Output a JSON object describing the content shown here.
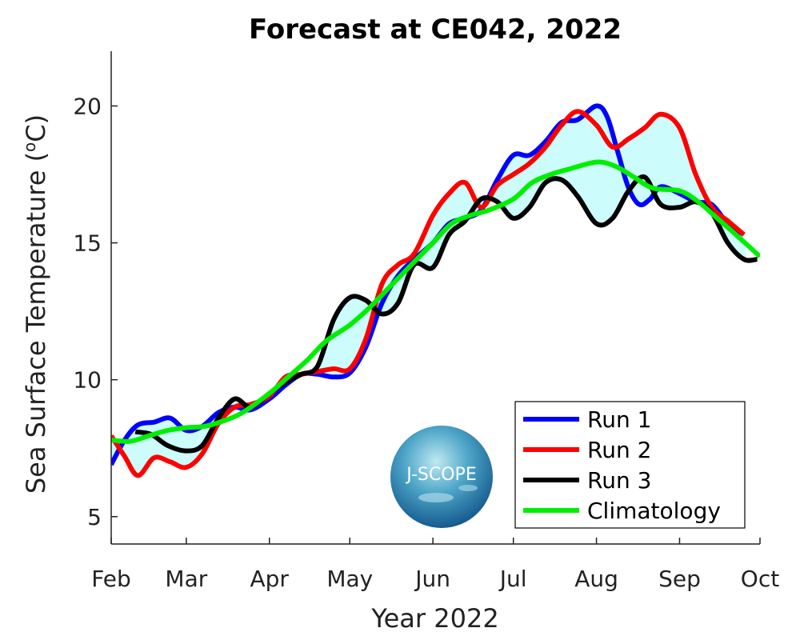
{
  "chart_data": {
    "type": "line",
    "title": "Forecast at CE042, 2022",
    "xlabel": "Year 2022",
    "ylabel": "Sea Surface Temperature (°C)",
    "ylabel_parts": {
      "main": "Sea Surface Temperature (",
      "sup": "o",
      "unit": "C)"
    },
    "x_type": "date",
    "x_ticks": [
      {
        "date": "2022-02-01",
        "label": "Feb"
      },
      {
        "date": "2022-03-01",
        "label": "Mar"
      },
      {
        "date": "2022-04-01",
        "label": "Apr"
      },
      {
        "date": "2022-05-01",
        "label": "May"
      },
      {
        "date": "2022-06-01",
        "label": "Jun"
      },
      {
        "date": "2022-07-01",
        "label": "Jul"
      },
      {
        "date": "2022-08-01",
        "label": "Aug"
      },
      {
        "date": "2022-09-01",
        "label": "Sep"
      },
      {
        "date": "2022-10-01",
        "label": "Oct"
      }
    ],
    "xlim": [
      "2022-02-01",
      "2022-10-01"
    ],
    "ylim": [
      4,
      22
    ],
    "y_ticks": [
      5,
      10,
      15,
      20
    ],
    "grid": false,
    "legend_position": "bottom-right",
    "envelope": {
      "fill": "#ccfcfc",
      "series": [
        "Run 1",
        "Run 2",
        "Run 3"
      ]
    },
    "series": [
      {
        "name": "Run 1",
        "color": "#0000ff",
        "points": [
          [
            "2022-02-01",
            6.9
          ],
          [
            "2022-02-06",
            7.8
          ],
          [
            "2022-02-11",
            8.35
          ],
          [
            "2022-02-17",
            8.45
          ],
          [
            "2022-02-23",
            8.6
          ],
          [
            "2022-03-01",
            8.15
          ],
          [
            "2022-03-07",
            8.3
          ],
          [
            "2022-03-13",
            8.8
          ],
          [
            "2022-03-19",
            9.0
          ],
          [
            "2022-03-25",
            8.9
          ],
          [
            "2022-04-01",
            9.3
          ],
          [
            "2022-04-07",
            9.8
          ],
          [
            "2022-04-13",
            10.2
          ],
          [
            "2022-04-19",
            10.2
          ],
          [
            "2022-04-25",
            10.1
          ],
          [
            "2022-05-01",
            10.25
          ],
          [
            "2022-05-07",
            11.2
          ],
          [
            "2022-05-13",
            12.8
          ],
          [
            "2022-05-19",
            13.8
          ],
          [
            "2022-05-25",
            14.4
          ],
          [
            "2022-06-01",
            15.0
          ],
          [
            "2022-06-07",
            15.7
          ],
          [
            "2022-06-13",
            15.9
          ],
          [
            "2022-06-19",
            16.2
          ],
          [
            "2022-06-25",
            17.3
          ],
          [
            "2022-07-01",
            18.2
          ],
          [
            "2022-07-07",
            18.2
          ],
          [
            "2022-07-13",
            18.7
          ],
          [
            "2022-07-19",
            19.4
          ],
          [
            "2022-07-25",
            19.5
          ],
          [
            "2022-08-01",
            20.0
          ],
          [
            "2022-08-05",
            19.6
          ],
          [
            "2022-08-09",
            18.3
          ],
          [
            "2022-08-13",
            17.0
          ],
          [
            "2022-08-17",
            16.4
          ],
          [
            "2022-08-21",
            16.6
          ],
          [
            "2022-08-25",
            17.05
          ],
          [
            "2022-09-01",
            16.8
          ],
          [
            "2022-09-07",
            16.5
          ],
          [
            "2022-09-13",
            16.4
          ],
          [
            "2022-09-19",
            15.7
          ],
          [
            "2022-09-25",
            15.3
          ]
        ]
      },
      {
        "name": "Run 2",
        "color": "#ff0000",
        "points": [
          [
            "2022-02-01",
            7.95
          ],
          [
            "2022-02-06",
            7.2
          ],
          [
            "2022-02-11",
            6.5
          ],
          [
            "2022-02-17",
            7.15
          ],
          [
            "2022-02-23",
            7.0
          ],
          [
            "2022-03-01",
            6.8
          ],
          [
            "2022-03-07",
            7.3
          ],
          [
            "2022-03-13",
            8.4
          ],
          [
            "2022-03-19",
            9.0
          ],
          [
            "2022-03-25",
            9.1
          ],
          [
            "2022-04-01",
            9.4
          ],
          [
            "2022-04-07",
            10.1
          ],
          [
            "2022-04-13",
            10.2
          ],
          [
            "2022-04-19",
            10.3
          ],
          [
            "2022-04-25",
            10.4
          ],
          [
            "2022-05-01",
            10.4
          ],
          [
            "2022-05-07",
            11.5
          ],
          [
            "2022-05-13",
            13.5
          ],
          [
            "2022-05-19",
            14.2
          ],
          [
            "2022-05-25",
            14.6
          ],
          [
            "2022-06-01",
            16.0
          ],
          [
            "2022-06-07",
            16.8
          ],
          [
            "2022-06-13",
            17.2
          ],
          [
            "2022-06-19",
            16.3
          ],
          [
            "2022-06-25",
            17.1
          ],
          [
            "2022-07-01",
            17.5
          ],
          [
            "2022-07-07",
            17.9
          ],
          [
            "2022-07-13",
            18.5
          ],
          [
            "2022-07-19",
            19.3
          ],
          [
            "2022-07-25",
            19.8
          ],
          [
            "2022-08-01",
            19.3
          ],
          [
            "2022-08-07",
            18.5
          ],
          [
            "2022-08-13",
            18.8
          ],
          [
            "2022-08-19",
            19.2
          ],
          [
            "2022-08-25",
            19.7
          ],
          [
            "2022-09-01",
            19.2
          ],
          [
            "2022-09-07",
            17.5
          ],
          [
            "2022-09-13",
            16.3
          ],
          [
            "2022-09-19",
            15.8
          ],
          [
            "2022-09-25",
            15.3
          ]
        ]
      },
      {
        "name": "Run 3",
        "color": "#000000",
        "points": [
          [
            "2022-02-10",
            8.1
          ],
          [
            "2022-02-16",
            8.0
          ],
          [
            "2022-02-22",
            7.6
          ],
          [
            "2022-03-01",
            7.4
          ],
          [
            "2022-03-07",
            7.6
          ],
          [
            "2022-03-13",
            8.6
          ],
          [
            "2022-03-19",
            9.3
          ],
          [
            "2022-03-25",
            9.0
          ],
          [
            "2022-04-01",
            9.5
          ],
          [
            "2022-04-07",
            9.9
          ],
          [
            "2022-04-13",
            10.2
          ],
          [
            "2022-04-19",
            10.5
          ],
          [
            "2022-04-25",
            12.2
          ],
          [
            "2022-05-01",
            13.0
          ],
          [
            "2022-05-07",
            12.9
          ],
          [
            "2022-05-13",
            12.4
          ],
          [
            "2022-05-19",
            12.8
          ],
          [
            "2022-05-25",
            14.2
          ],
          [
            "2022-06-01",
            14.1
          ],
          [
            "2022-06-07",
            15.3
          ],
          [
            "2022-06-13",
            15.8
          ],
          [
            "2022-06-19",
            16.6
          ],
          [
            "2022-06-25",
            16.5
          ],
          [
            "2022-07-01",
            15.9
          ],
          [
            "2022-07-07",
            16.3
          ],
          [
            "2022-07-13",
            17.2
          ],
          [
            "2022-07-19",
            17.3
          ],
          [
            "2022-07-25",
            16.7
          ],
          [
            "2022-08-01",
            15.7
          ],
          [
            "2022-08-07",
            15.9
          ],
          [
            "2022-08-13",
            16.9
          ],
          [
            "2022-08-19",
            17.4
          ],
          [
            "2022-08-25",
            16.4
          ],
          [
            "2022-09-01",
            16.3
          ],
          [
            "2022-09-07",
            16.5
          ],
          [
            "2022-09-13",
            16.1
          ],
          [
            "2022-09-19",
            15.0
          ],
          [
            "2022-09-25",
            14.4
          ],
          [
            "2022-09-30",
            14.4
          ]
        ]
      },
      {
        "name": "Climatology",
        "color": "#00ee00",
        "points": [
          [
            "2022-02-01",
            7.8
          ],
          [
            "2022-02-08",
            7.75
          ],
          [
            "2022-02-15",
            7.95
          ],
          [
            "2022-02-22",
            8.15
          ],
          [
            "2022-03-01",
            8.25
          ],
          [
            "2022-03-08",
            8.3
          ],
          [
            "2022-03-15",
            8.5
          ],
          [
            "2022-03-22",
            8.8
          ],
          [
            "2022-04-01",
            9.5
          ],
          [
            "2022-04-08",
            10.1
          ],
          [
            "2022-04-15",
            10.7
          ],
          [
            "2022-04-22",
            11.4
          ],
          [
            "2022-05-01",
            12.0
          ],
          [
            "2022-05-08",
            12.6
          ],
          [
            "2022-05-15",
            13.3
          ],
          [
            "2022-05-22",
            14.0
          ],
          [
            "2022-06-01",
            15.0
          ],
          [
            "2022-06-08",
            15.7
          ],
          [
            "2022-06-15",
            16.0
          ],
          [
            "2022-06-22",
            16.2
          ],
          [
            "2022-07-01",
            16.6
          ],
          [
            "2022-07-08",
            17.2
          ],
          [
            "2022-07-15",
            17.5
          ],
          [
            "2022-07-22",
            17.7
          ],
          [
            "2022-08-01",
            17.95
          ],
          [
            "2022-08-08",
            17.8
          ],
          [
            "2022-08-15",
            17.4
          ],
          [
            "2022-08-22",
            17.0
          ],
          [
            "2022-09-01",
            16.9
          ],
          [
            "2022-09-08",
            16.5
          ],
          [
            "2022-09-15",
            15.9
          ],
          [
            "2022-09-22",
            15.3
          ],
          [
            "2022-10-01",
            14.5
          ]
        ]
      }
    ]
  },
  "logo": {
    "text": "J-SCOPE"
  }
}
